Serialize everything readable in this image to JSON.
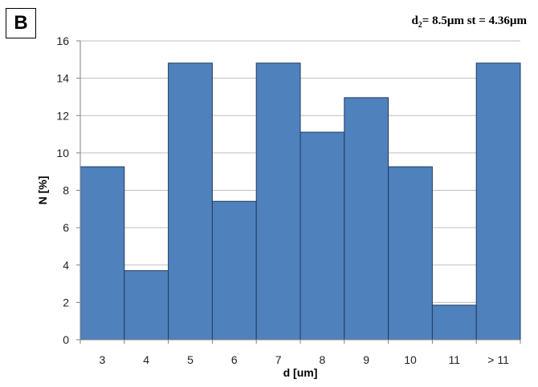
{
  "panel_label": "B",
  "annotation": {
    "d_symbol": "d",
    "d_subscript": "2",
    "d_value": "= 8.5µm",
    "st_text": "st = 4.36µm"
  },
  "colors": {
    "bar_fill": "#4F81BD",
    "bar_stroke": "#1F3B5E",
    "grid": "#BFBFBF",
    "axis": "#808080"
  },
  "chart_data": {
    "type": "bar",
    "categories": [
      "3",
      "4",
      "5",
      "6",
      "7",
      "8",
      "9",
      "10",
      "11",
      "> 11"
    ],
    "values": [
      9.26,
      3.7,
      14.81,
      7.41,
      14.81,
      11.11,
      12.96,
      9.26,
      1.85,
      14.81
    ],
    "xlabel": "d [um]",
    "ylabel": "N [%]",
    "ylim": [
      0,
      16
    ],
    "yticks": [
      0,
      2,
      4,
      6,
      8,
      10,
      12,
      14,
      16
    ],
    "grid": true,
    "legend": "none"
  }
}
